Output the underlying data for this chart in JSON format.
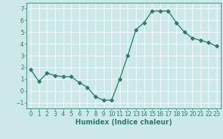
{
  "x": [
    0,
    1,
    2,
    3,
    4,
    5,
    6,
    7,
    8,
    9,
    10,
    11,
    12,
    13,
    14,
    15,
    16,
    17,
    18,
    19,
    20,
    21,
    22,
    23
  ],
  "y": [
    1.8,
    0.8,
    1.5,
    1.3,
    1.2,
    1.2,
    0.7,
    0.3,
    -0.5,
    -0.8,
    -0.8,
    1.0,
    3.0,
    5.2,
    5.8,
    6.8,
    6.8,
    6.8,
    5.8,
    5.0,
    4.5,
    4.3,
    4.1,
    3.8
  ],
  "xlabel": "Humidex (Indice chaleur)",
  "ylim": [
    -1.5,
    7.5
  ],
  "xlim": [
    -0.5,
    23.5
  ],
  "yticks": [
    -1,
    0,
    1,
    2,
    3,
    4,
    5,
    6,
    7
  ],
  "xticks": [
    0,
    1,
    2,
    3,
    4,
    5,
    6,
    7,
    8,
    9,
    10,
    11,
    12,
    13,
    14,
    15,
    16,
    17,
    18,
    19,
    20,
    21,
    22,
    23
  ],
  "line_color": "#2d7a6e",
  "marker": "D",
  "marker_size": 2.5,
  "bg_color": "#cce8e8",
  "grid_color": "#ffffff",
  "spine_color": "#2d7a6e",
  "xlabel_fontsize": 7,
  "tick_fontsize": 6,
  "line_width": 1.0
}
